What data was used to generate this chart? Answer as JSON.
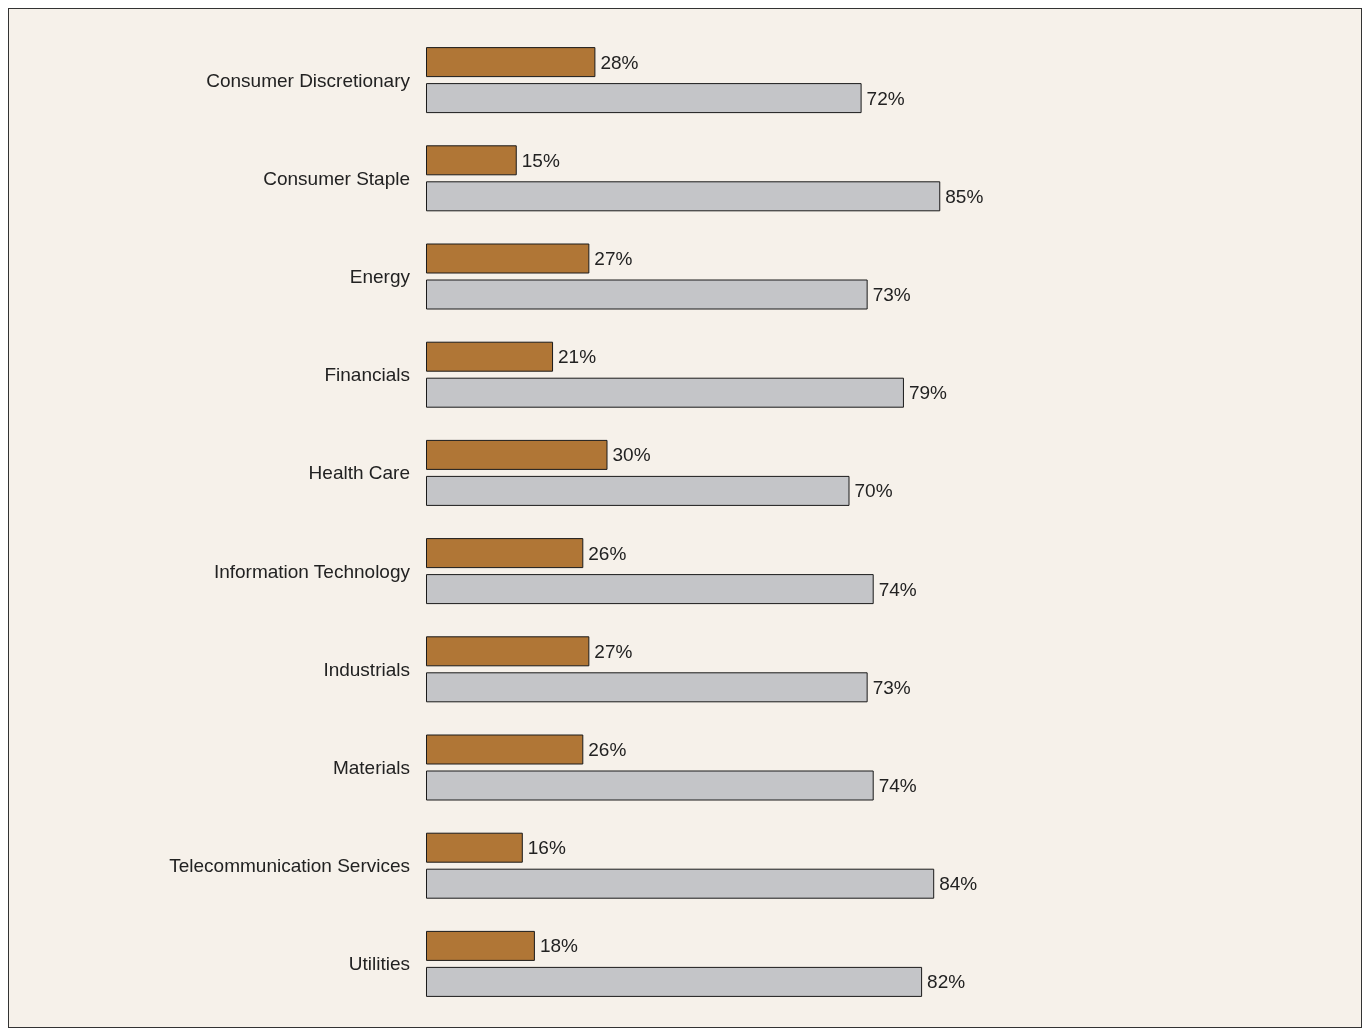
{
  "chart_data": {
    "type": "bar",
    "orientation": "horizontal",
    "categories": [
      "Consumer Discretionary",
      "Consumer Staple",
      "Energy",
      "Financials",
      "Health Care",
      "Information Technology",
      "Industrials",
      "Materials",
      "Telecommunication Services",
      "Utilities"
    ],
    "series": [
      {
        "color": "#b07636",
        "values": [
          28,
          15,
          27,
          21,
          30,
          26,
          27,
          26,
          16,
          18
        ],
        "value_labels": [
          "28%",
          "15%",
          "27%",
          "21%",
          "30%",
          "26%",
          "27%",
          "26%",
          "16%",
          "18%"
        ]
      },
      {
        "color": "#c4c5c8",
        "values": [
          72,
          85,
          73,
          79,
          70,
          74,
          73,
          74,
          84,
          82
        ],
        "value_labels": [
          "72%",
          "85%",
          "73%",
          "79%",
          "70%",
          "74%",
          "73%",
          "74%",
          "84%",
          "82%"
        ]
      }
    ]
  }
}
